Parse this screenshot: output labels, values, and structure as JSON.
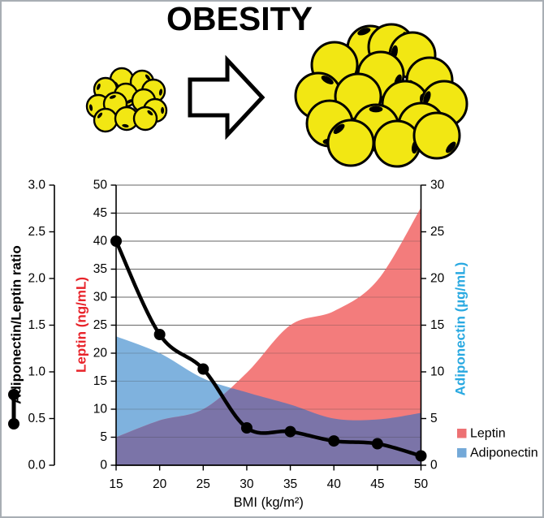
{
  "title": "OBESITY",
  "figure": {
    "small_cluster": "small-adipocyte-cluster",
    "big_cluster": "enlarged-adipocyte-cluster",
    "arrow": "right-arrow",
    "cell_color": "#F2E713"
  },
  "chart_data": {
    "type": "area",
    "x": [
      15,
      20,
      25,
      30,
      35,
      40,
      45,
      50
    ],
    "x_axis": {
      "title": "BMI (kg/m²)",
      "tick_labels": [
        "15",
        "20",
        "25",
        "30",
        "35",
        "40",
        "45",
        "50"
      ]
    },
    "axes": {
      "ratio": {
        "title": "Adiponectin/Leptin ratio",
        "min": 0,
        "max": 3,
        "tick_labels": [
          "0.0",
          "0.5",
          "1.0",
          "1.5",
          "2.0",
          "2.5",
          "3.0"
        ],
        "color": "#000000"
      },
      "leptin": {
        "title": "Leptin (ng/mL)",
        "min": 0,
        "max": 50,
        "tick_labels": [
          "0",
          "5",
          "10",
          "15",
          "20",
          "25",
          "30",
          "35",
          "40",
          "45",
          "50"
        ],
        "color": "#E8232A"
      },
      "adiponectin": {
        "title": "Adiponectin (µg/mL)",
        "min": 0,
        "max": 30,
        "tick_labels": [
          "0",
          "5",
          "10",
          "15",
          "20",
          "25",
          "30"
        ],
        "color": "#29A9E1"
      }
    },
    "series": [
      {
        "name": "Leptin",
        "type": "area",
        "axis": "leptin",
        "color": "#F37C7C",
        "values": [
          5,
          8,
          10,
          16.5,
          25,
          27.5,
          33,
          46
        ]
      },
      {
        "name": "Adiponectin",
        "type": "area",
        "axis": "adiponectin",
        "color": "#7FB2DE",
        "values": [
          13.8,
          12,
          9.3,
          7.8,
          6.5,
          5,
          4.9,
          5.6
        ]
      },
      {
        "name": "Adiponectin/Leptin ratio",
        "type": "line",
        "axis": "ratio",
        "color": "#000000",
        "values": [
          2.4,
          1.4,
          1.03,
          0.4,
          0.36,
          0.26,
          0.23,
          0.1
        ]
      }
    ],
    "overlap_color": "#7B74A8",
    "grid": true,
    "legend_position": "right-bottom",
    "legend": [
      {
        "label": "Leptin",
        "color": "#ED7173"
      },
      {
        "label": "Adiponectin",
        "color": "#74A9D8"
      }
    ]
  }
}
